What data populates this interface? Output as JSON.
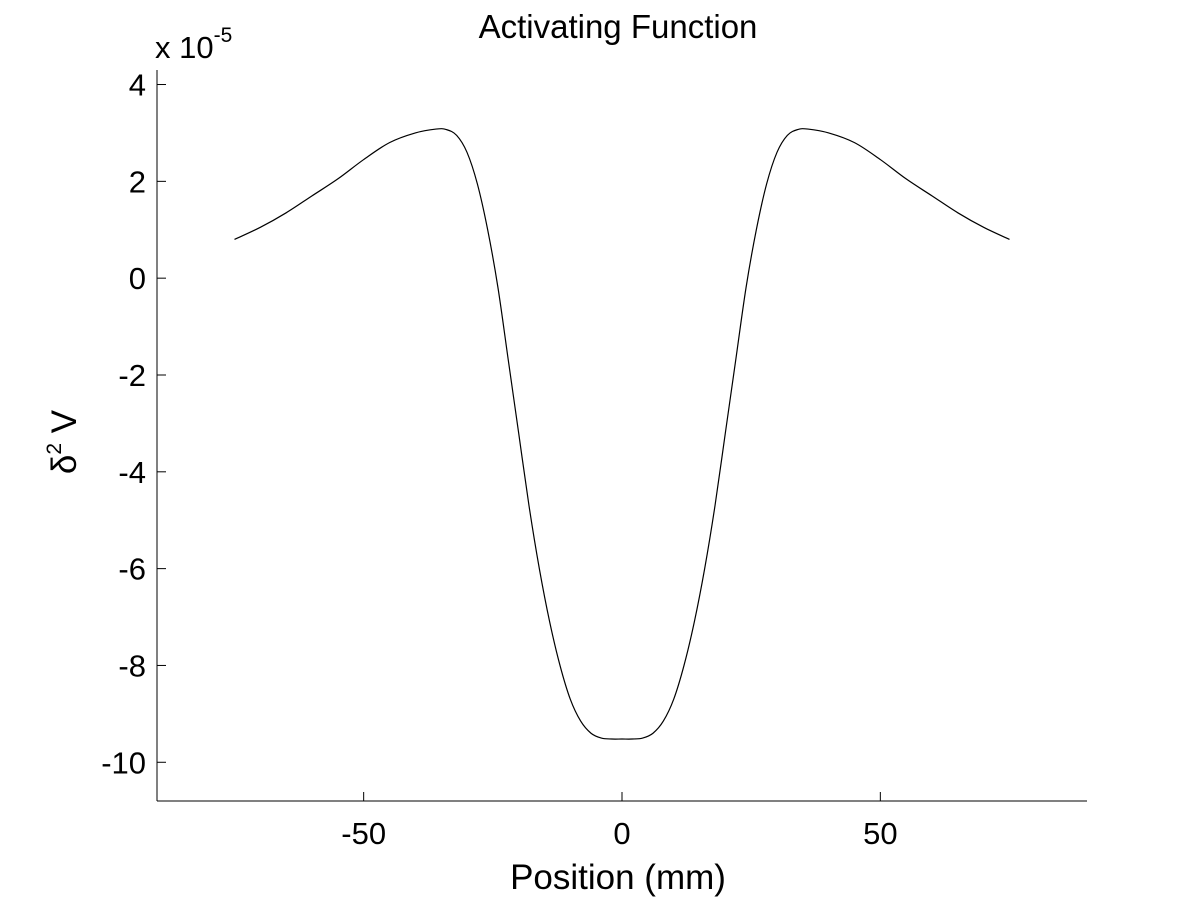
{
  "chart_data": {
    "type": "line",
    "title": "Activating Function",
    "xlabel": "Position (mm)",
    "ylabel_symbol": "δ",
    "ylabel_sup": "2",
    "ylabel_var": " V",
    "y_multiplier_base": "x 10",
    "y_multiplier_exp": "-5",
    "xlim": [
      -90,
      90
    ],
    "ylim": [
      -10.8,
      4.3
    ],
    "xticks": [
      -50,
      0,
      50
    ],
    "xtick_labels": [
      "-50",
      "0",
      "50"
    ],
    "yticks": [
      4,
      2,
      0,
      -2,
      -4,
      -6,
      -8,
      -10
    ],
    "ytick_labels": [
      "4",
      "2",
      "0",
      "-2",
      "-4",
      "-6",
      "-8",
      "-10"
    ],
    "grid": false,
    "legend": false,
    "line_color": "#000000",
    "series": [
      {
        "x": [
          -75,
          -70,
          -65,
          -60,
          -55,
          -50,
          -45,
          -40,
          -36,
          -34,
          -32,
          -30,
          -28,
          -26,
          -24,
          -22,
          -20,
          -18,
          -16,
          -14,
          -12,
          -10,
          -8,
          -6,
          -4,
          -2,
          0,
          2,
          4,
          6,
          8,
          10,
          12,
          14,
          16,
          18,
          20,
          22,
          24,
          26,
          28,
          30,
          32,
          34,
          36,
          40,
          45,
          50,
          55,
          60,
          65,
          70,
          75
        ],
        "y": [
          0.8,
          1.05,
          1.35,
          1.7,
          2.05,
          2.45,
          2.8,
          3.0,
          3.08,
          3.07,
          2.95,
          2.6,
          1.95,
          1.0,
          -0.2,
          -1.7,
          -3.2,
          -4.7,
          -6.0,
          -7.1,
          -8.0,
          -8.7,
          -9.15,
          -9.4,
          -9.5,
          -9.52,
          -9.52,
          -9.52,
          -9.5,
          -9.4,
          -9.15,
          -8.7,
          -8.0,
          -7.1,
          -6.0,
          -4.7,
          -3.2,
          -1.7,
          -0.2,
          1.0,
          1.95,
          2.6,
          2.95,
          3.07,
          3.08,
          3.0,
          2.8,
          2.45,
          2.05,
          1.7,
          1.35,
          1.05,
          0.8
        ]
      }
    ]
  }
}
